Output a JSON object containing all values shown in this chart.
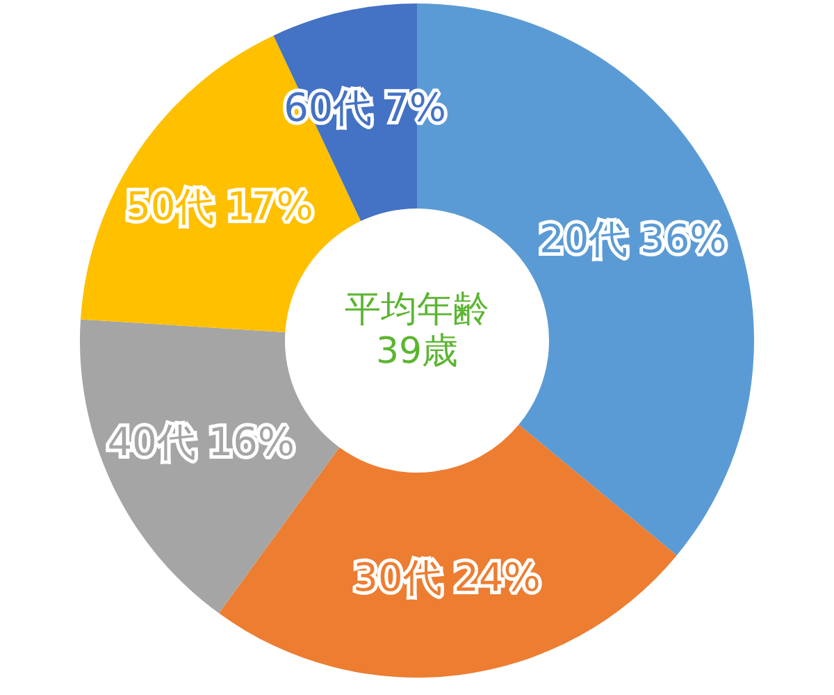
{
  "chart_data": {
    "type": "donut",
    "title": "平均年齢",
    "subtitle": "39歳",
    "categories": [
      "20代",
      "30代",
      "40代",
      "50代",
      "60代"
    ],
    "values": [
      36,
      24,
      16,
      17,
      7
    ],
    "value_labels": [
      "36%",
      "24%",
      "16%",
      "17%",
      "7%"
    ],
    "colors": [
      "#5b9bd5",
      "#ed7d31",
      "#a5a5a5",
      "#ffc000",
      "#4472c4"
    ],
    "legend": false
  }
}
